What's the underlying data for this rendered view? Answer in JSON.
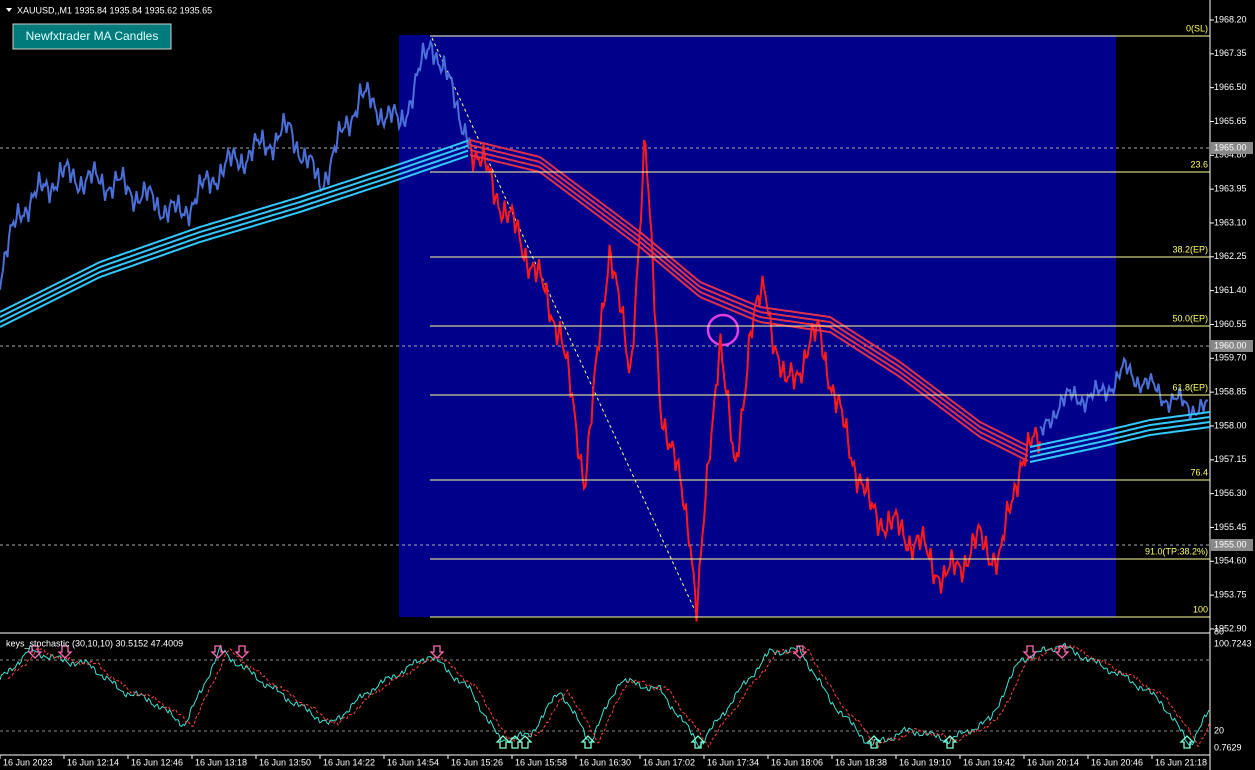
{
  "header": {
    "symbol_line": "XAUUSD,,M1  1935.84 1935.84 1935.62 1935.65",
    "button": "Newfxtrader MA Candles"
  },
  "price_axis": {
    "labels": [
      "1968.20",
      "1967.35",
      "1966.50",
      "1965.65",
      "1964.80",
      "1963.95",
      "1963.10",
      "1962.25",
      "1961.40",
      "1960.55",
      "1959.70",
      "1958.85",
      "1958.00",
      "1957.15",
      "1956.30",
      "1955.45",
      "1954.60",
      "1953.75",
      "1952.90"
    ],
    "marked_levels": [
      "1965.00",
      "1960.00",
      "1955.00"
    ]
  },
  "fibonacci": {
    "levels": [
      "0(SL)",
      "23.6",
      "38.2(EP)",
      "50.0(EP)",
      "61.8(EP)",
      "76.4",
      "91.0(TP:38.2%)",
      "100"
    ]
  },
  "indicator": {
    "title": "keys_stochastic (30,10,10) 30.5152 47.4009",
    "labels": [
      "100.7243",
      "80",
      "20",
      "0.7629"
    ]
  },
  "time_axis": {
    "labels": [
      "16 Jun 2023",
      "16 Jun 12:14",
      "16 Jun 12:46",
      "16 Jun 13:18",
      "16 Jun 13:50",
      "16 Jun 14:22",
      "16 Jun 14:54",
      "16 Jun 15:26",
      "16 Jun 15:58",
      "16 Jun 16:30",
      "16 Jun 17:02",
      "16 Jun 17:34",
      "16 Jun 18:06",
      "16 Jun 18:38",
      "16 Jun 19:10",
      "16 Jun 19:42",
      "16 Jun 20:14",
      "16 Jun 20:46",
      "16 Jun 21:18"
    ]
  }
}
